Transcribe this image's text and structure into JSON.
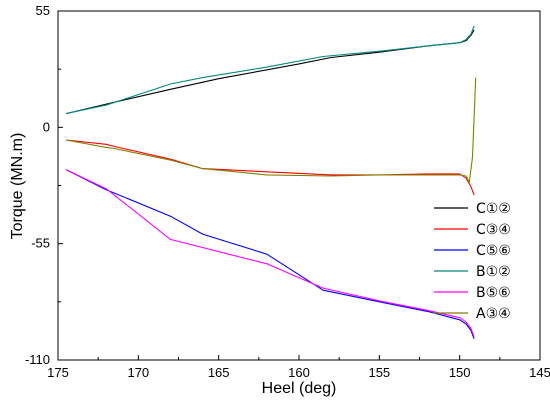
{
  "chart_data": {
    "type": "line",
    "xlabel": "Heel (deg)",
    "ylabel": "Torque (MN.m)",
    "xlim": [
      175,
      145
    ],
    "ylim": [
      -110,
      55
    ],
    "x_ticks": [
      175,
      170,
      165,
      160,
      155,
      150,
      145
    ],
    "y_ticks": [
      -110,
      -55,
      0,
      55
    ],
    "grid": false,
    "legend_position": "right",
    "series": [
      {
        "name": "C①②",
        "color": "#000000",
        "points": [
          [
            174.5,
            6.5
          ],
          [
            172,
            11
          ],
          [
            168,
            18
          ],
          [
            165,
            23
          ],
          [
            160,
            30
          ],
          [
            158,
            33
          ],
          [
            155,
            35.5
          ],
          [
            152,
            38.5
          ],
          [
            150,
            40
          ],
          [
            149.6,
            41
          ],
          [
            149.3,
            43.5
          ],
          [
            149.1,
            46
          ]
        ]
      },
      {
        "name": "C③④",
        "color": "#ff0000",
        "points": [
          [
            174.5,
            -6
          ],
          [
            172,
            -8
          ],
          [
            171.5,
            -9
          ],
          [
            168,
            -15
          ],
          [
            166,
            -19.5
          ],
          [
            162,
            -21
          ],
          [
            158,
            -22.5
          ],
          [
            155,
            -22.5
          ],
          [
            152,
            -22
          ],
          [
            150,
            -22
          ],
          [
            149.6,
            -24
          ],
          [
            149.3,
            -28
          ],
          [
            149.1,
            -32
          ]
        ]
      },
      {
        "name": "C⑤⑥",
        "color": "#0000ff",
        "points": [
          [
            174.5,
            -20
          ],
          [
            172,
            -29.5
          ],
          [
            168,
            -42
          ],
          [
            166,
            -50.5
          ],
          [
            162,
            -60
          ],
          [
            158.5,
            -77
          ],
          [
            155,
            -82.5
          ],
          [
            152,
            -87
          ],
          [
            150,
            -91
          ],
          [
            149.6,
            -93
          ],
          [
            149.3,
            -96
          ],
          [
            149.1,
            -100
          ]
        ]
      },
      {
        "name": "B①②",
        "color": "#00897b",
        "points": [
          [
            174.5,
            6.5
          ],
          [
            172,
            10.5
          ],
          [
            168,
            20.5
          ],
          [
            166,
            23.5
          ],
          [
            162,
            28.5
          ],
          [
            158.5,
            33.5
          ],
          [
            155,
            36
          ],
          [
            152,
            38.5
          ],
          [
            150,
            40
          ],
          [
            149.6,
            41.5
          ],
          [
            149.3,
            44
          ],
          [
            149.1,
            48
          ]
        ]
      },
      {
        "name": "B⑤⑥",
        "color": "#ff00ff",
        "points": [
          [
            174.5,
            -20
          ],
          [
            172,
            -29
          ],
          [
            168,
            -53
          ],
          [
            162,
            -64.5
          ],
          [
            158.5,
            -76
          ],
          [
            155,
            -82
          ],
          [
            152,
            -86.5
          ],
          [
            150,
            -90
          ],
          [
            149.6,
            -92
          ],
          [
            149.3,
            -95
          ],
          [
            149.1,
            -99
          ]
        ]
      },
      {
        "name": "A③④",
        "color": "#808000",
        "points": [
          [
            174.5,
            -6
          ],
          [
            172,
            -9.5
          ],
          [
            171.5,
            -10
          ],
          [
            168,
            -15.5
          ],
          [
            166,
            -19.5
          ],
          [
            162,
            -22.5
          ],
          [
            158,
            -23
          ],
          [
            155,
            -22.5
          ],
          [
            152,
            -22.5
          ],
          [
            150,
            -22.5
          ],
          [
            149.6,
            -23
          ],
          [
            149.4,
            -26
          ],
          [
            149.2,
            -14
          ],
          [
            149.0,
            23.5
          ]
        ]
      }
    ]
  }
}
